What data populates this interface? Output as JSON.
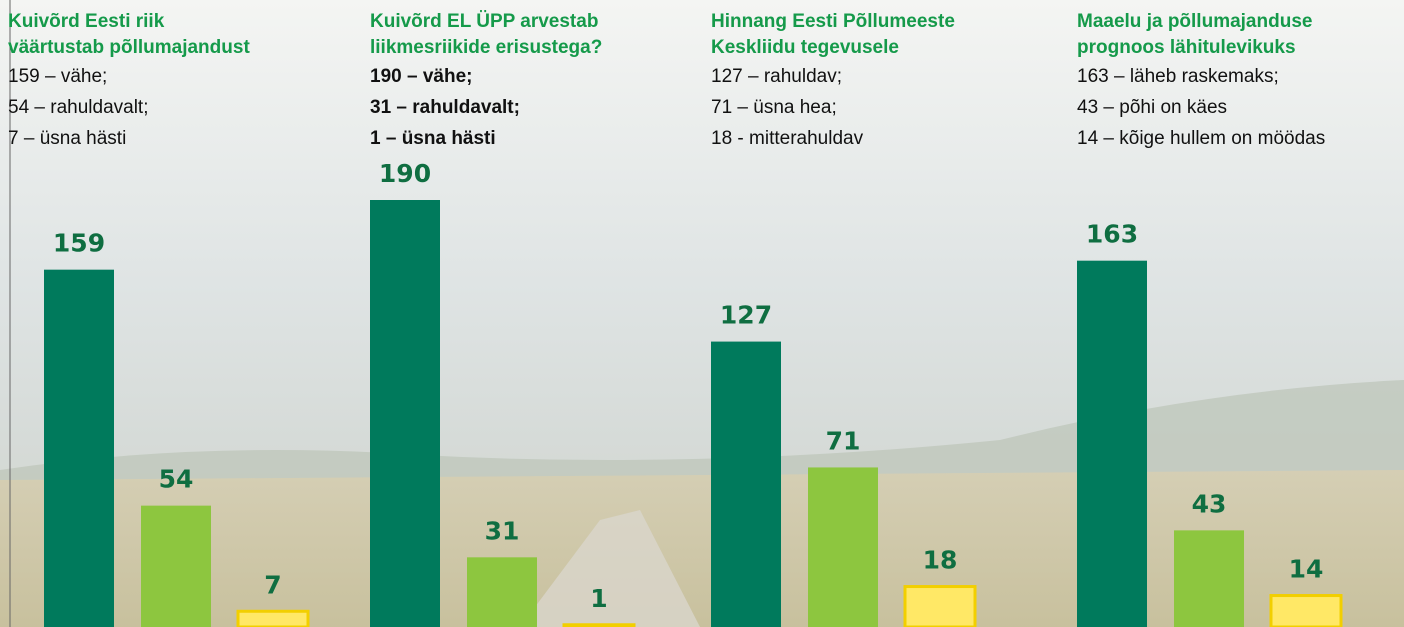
{
  "chart_data": [
    {
      "type": "bar",
      "title": [
        "Kuivõrd Eesti riik",
        "väärtustab põllumajandust"
      ],
      "notes": [
        "159 – vähe;",
        "54 – rahuldavalt;",
        "7 – üsna hästi"
      ],
      "notes_bold": false,
      "categories": [
        null,
        null,
        null
      ],
      "values": [
        159,
        54,
        7
      ],
      "colors": [
        "#007a5c",
        "#8dc63f",
        "#ffe866"
      ],
      "ylim": [
        0,
        190
      ]
    },
    {
      "type": "bar",
      "title": [
        "Kuivõrd EL ÜPP arvestab",
        "liikmesriikide erisustega?"
      ],
      "notes": [
        "190 – vähe;",
        "31 – rahuldavalt;",
        "1 – üsna hästi"
      ],
      "notes_bold": true,
      "categories": [
        null,
        null,
        null
      ],
      "values": [
        190,
        31,
        1
      ],
      "colors": [
        "#007a5c",
        "#8dc63f",
        "#ffe866"
      ],
      "ylim": [
        0,
        190
      ]
    },
    {
      "type": "bar",
      "title": [
        "Hinnang Eesti Põllumeeste",
        "Keskliidu tegevusele"
      ],
      "notes": [
        "127 – rahuldav;",
        "71 – üsna hea;",
        "18 - mitterahuldav"
      ],
      "notes_bold": false,
      "categories": [
        null,
        null,
        null
      ],
      "values": [
        127,
        71,
        18
      ],
      "colors": [
        "#007a5c",
        "#8dc63f",
        "#ffe866"
      ],
      "ylim": [
        0,
        190
      ]
    },
    {
      "type": "bar",
      "title": [
        "Maaelu ja põllumajanduse",
        "prognoos lähitulevikuks"
      ],
      "notes": [
        "163 – läheb raskemaks;",
        "43 – põhi on käes",
        "14 – kõige hullem on möödas"
      ],
      "notes_bold": false,
      "categories": [
        null,
        null,
        null
      ],
      "values": [
        163,
        43,
        14
      ],
      "colors": [
        "#007a5c",
        "#8dc63f",
        "#ffe866"
      ],
      "ylim": [
        0,
        190
      ]
    }
  ]
}
